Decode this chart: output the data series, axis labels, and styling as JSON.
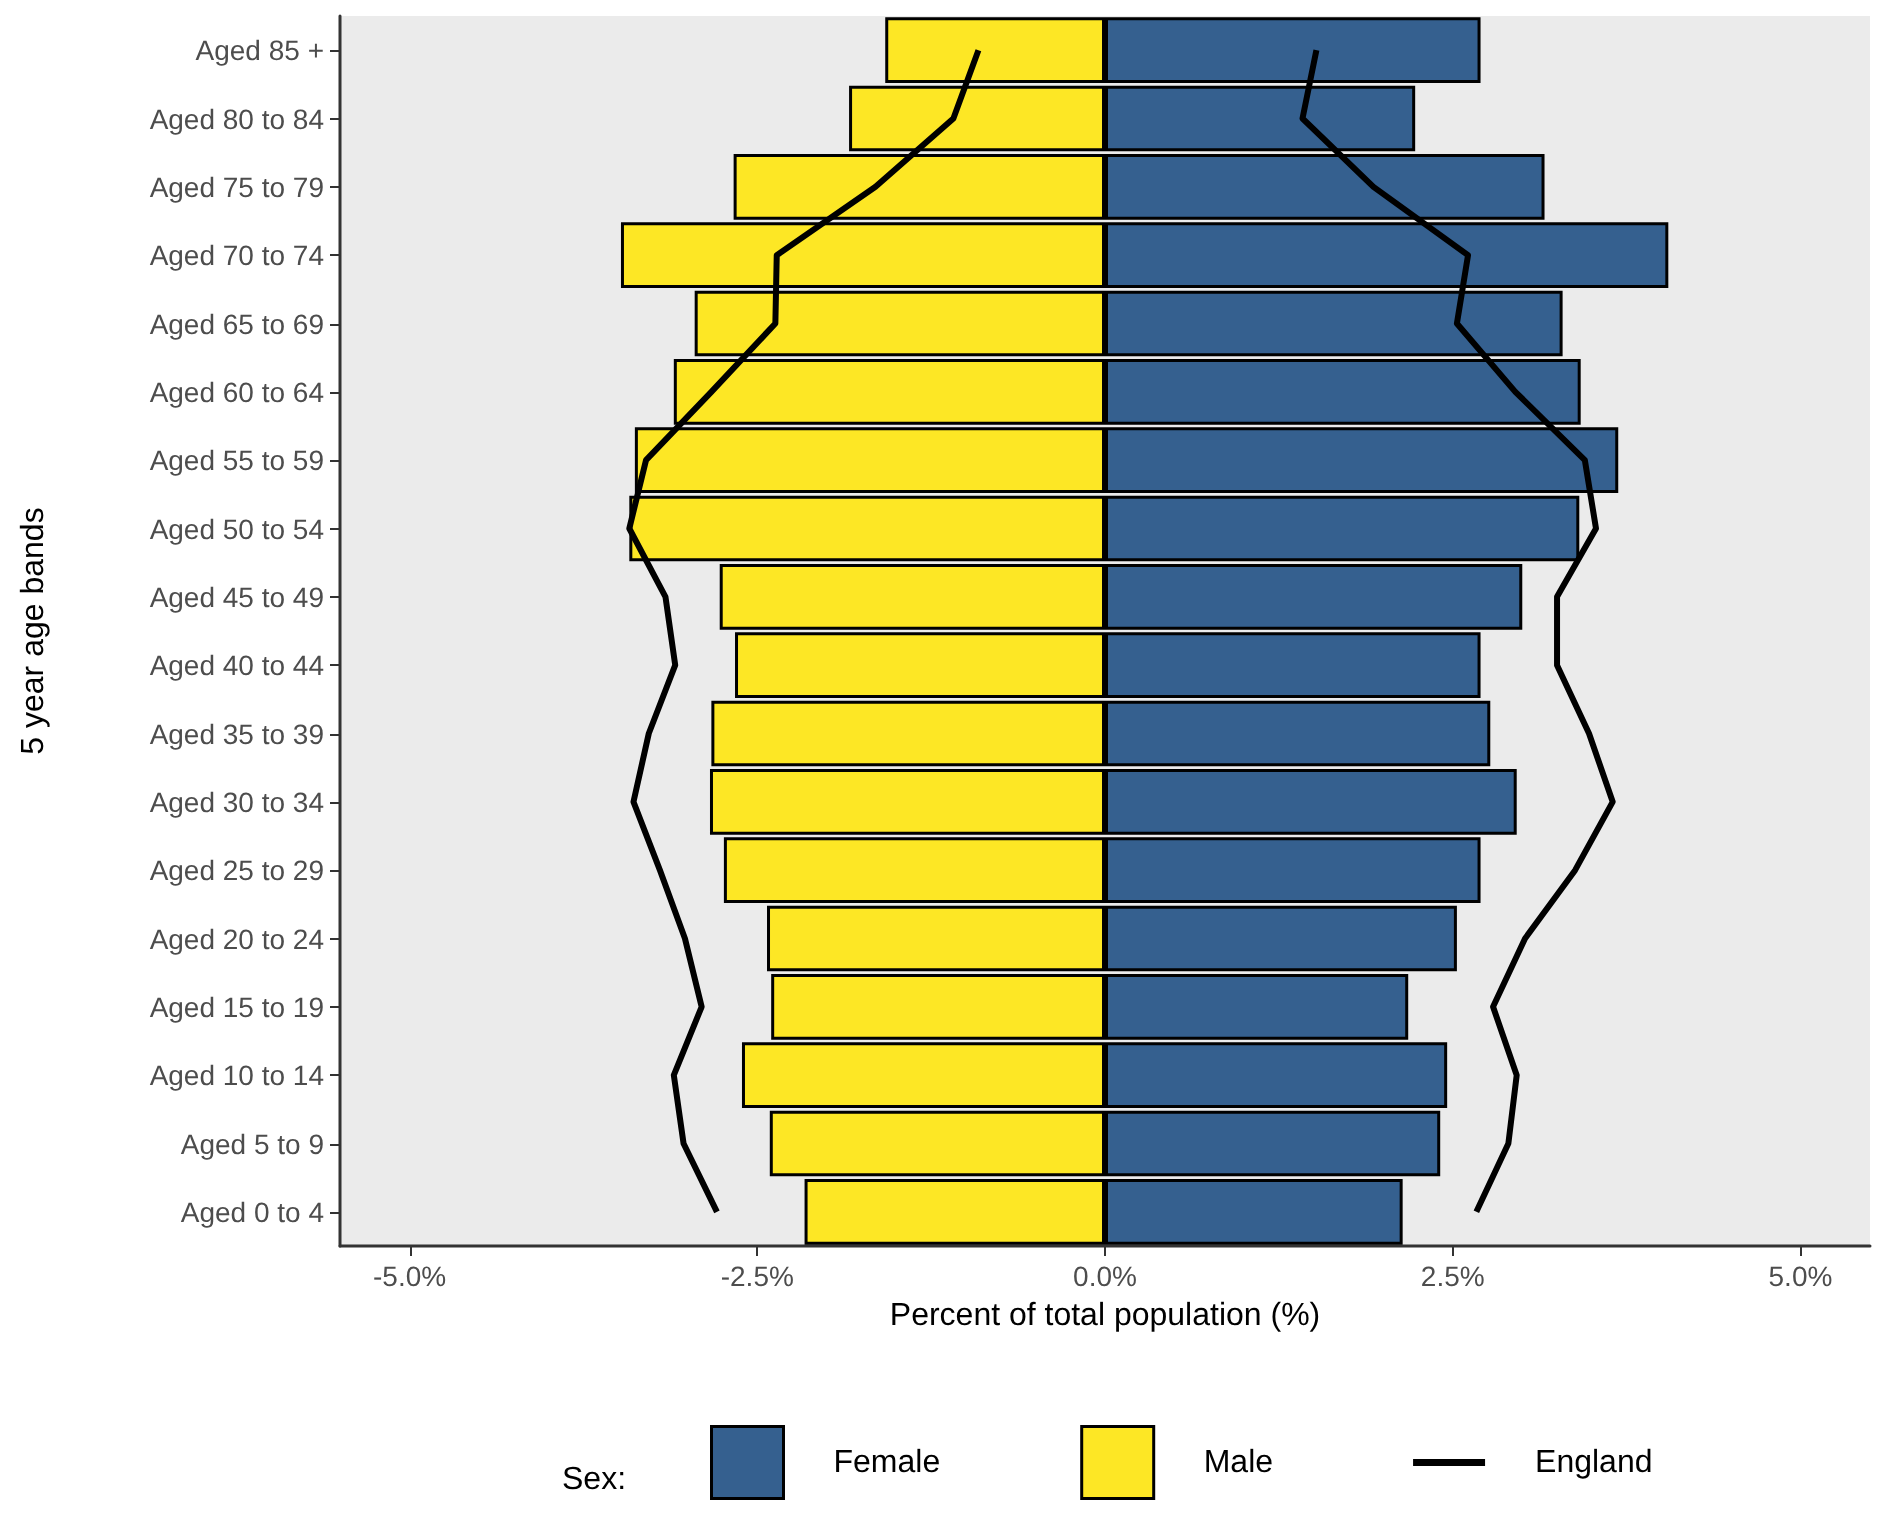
{
  "chart_data": {
    "type": "bar",
    "orientation": "horizontal",
    "xlabel": "Percent of total population (%)",
    "ylabel": "5 year age bands",
    "legend_title": "Sex:",
    "legend": "bottom",
    "grid": false,
    "stacked": true,
    "categories": [
      "Aged 85 +",
      "Aged 80 to 84",
      "Aged 75 to 79",
      "Aged 70 to 74",
      "Aged 65 to 69",
      "Aged 60 to 64",
      "Aged 55 to 59",
      "Aged 50 to 54",
      "Aged 45 to 49",
      "Aged 40 to 44",
      "Aged 35 to 39",
      "Aged 30 to 34",
      "Aged 25 to 29",
      "Aged 20 to 24",
      "Aged 15 to 19",
      "Aged 10 to 14",
      "Aged 5 to 9",
      "Aged 0 to 4"
    ],
    "xlim": [
      -5.5,
      5.5
    ],
    "xticks": [
      {
        "value": -5,
        "label": "-5.0%"
      },
      {
        "value": -2.5,
        "label": "-2.5%"
      },
      {
        "value": 0,
        "label": "0.0%"
      },
      {
        "value": 2.5,
        "label": "2.5%"
      },
      {
        "value": 5,
        "label": "5.0%"
      }
    ],
    "series": [
      {
        "name": "Female",
        "color": "#35608f",
        "values": [
          2.7,
          2.23,
          3.16,
          4.05,
          3.29,
          3.42,
          3.69,
          3.41,
          3.0,
          2.7,
          2.77,
          2.96,
          2.7,
          2.53,
          2.18,
          2.46,
          2.41,
          2.14
        ]
      },
      {
        "name": "Male",
        "color": "#fde725",
        "values": [
          -1.58,
          -1.84,
          -2.67,
          -3.48,
          -2.95,
          -3.1,
          -3.38,
          -3.42,
          -2.77,
          -2.66,
          -2.83,
          -2.84,
          -2.74,
          -2.43,
          -2.4,
          -2.61,
          -2.41,
          -2.16
        ]
      },
      {
        "name": "England",
        "type": "line",
        "color": "#000000",
        "values": [
          1.52,
          1.42,
          1.93,
          2.61,
          2.53,
          2.95,
          3.45,
          3.53,
          3.25,
          3.25,
          3.48,
          3.65,
          3.38,
          3.02,
          2.79,
          2.96,
          2.9,
          2.67
        ]
      },
      {
        "type": "line",
        "color": "#000000",
        "values": [
          -0.91,
          -1.09,
          -1.65,
          -2.36,
          -2.37,
          -2.83,
          -3.3,
          -3.42,
          -3.16,
          -3.09,
          -3.28,
          -3.39,
          -3.2,
          -3.02,
          -2.9,
          -3.1,
          -3.03,
          -2.79
        ]
      }
    ]
  }
}
